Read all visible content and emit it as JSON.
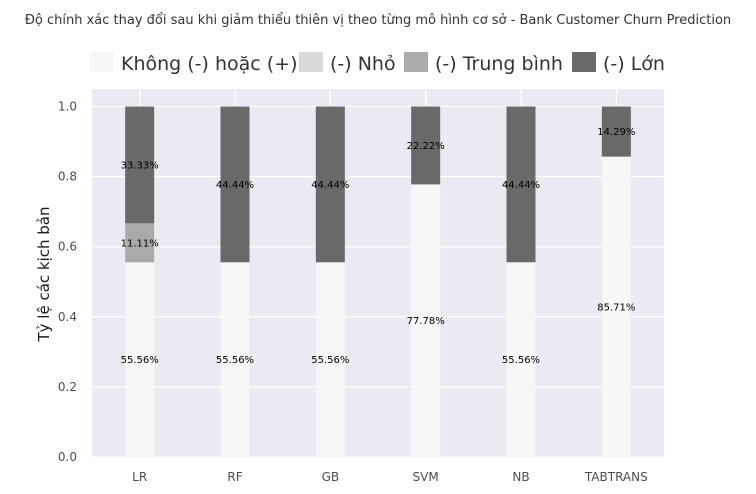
{
  "chart_data": {
    "type": "bar",
    "stacked": true,
    "title": "Độ chính xác thay đổi sau khi giảm thiểu thiên vị theo từng mô hình cơ sở - Bank Customer Churn Prediction",
    "xlabel": "",
    "ylabel": "Tỷ lệ các kịch bản",
    "ylim": [
      0,
      1.05
    ],
    "yticks": [
      "0.0",
      "0.2",
      "0.4",
      "0.6",
      "0.8",
      "1.0"
    ],
    "grid": true,
    "legend_position": "top",
    "categories": [
      "LR",
      "RF",
      "GB",
      "SVM",
      "NB",
      "TABTRANS"
    ],
    "series": [
      {
        "name": "Không (-) hoặc (+)",
        "color": "#f7f7f7",
        "values": [
          0.5556,
          0.5556,
          0.5556,
          0.7778,
          0.5556,
          0.8571
        ],
        "labels": [
          "55.56%",
          "55.56%",
          "55.56%",
          "77.78%",
          "55.56%",
          "85.71%"
        ]
      },
      {
        "name": "(-) Nhỏ",
        "color": "#d9d9d9",
        "values": [
          0,
          0,
          0,
          0,
          0,
          0
        ],
        "labels": [
          "",
          "",
          "",
          "",
          "",
          ""
        ]
      },
      {
        "name": "(-) Trung bình",
        "color": "#aaaaaa",
        "values": [
          0.1111,
          0,
          0,
          0,
          0,
          0
        ],
        "labels": [
          "11.11%",
          "",
          "",
          "",
          "",
          ""
        ]
      },
      {
        "name": "(-) Lớn",
        "color": "#696969",
        "values": [
          0.3333,
          0.4444,
          0.4444,
          0.2222,
          0.4444,
          0.1429
        ],
        "labels": [
          "33.33%",
          "44.44%",
          "44.44%",
          "22.22%",
          "44.44%",
          "14.29%"
        ]
      }
    ]
  }
}
